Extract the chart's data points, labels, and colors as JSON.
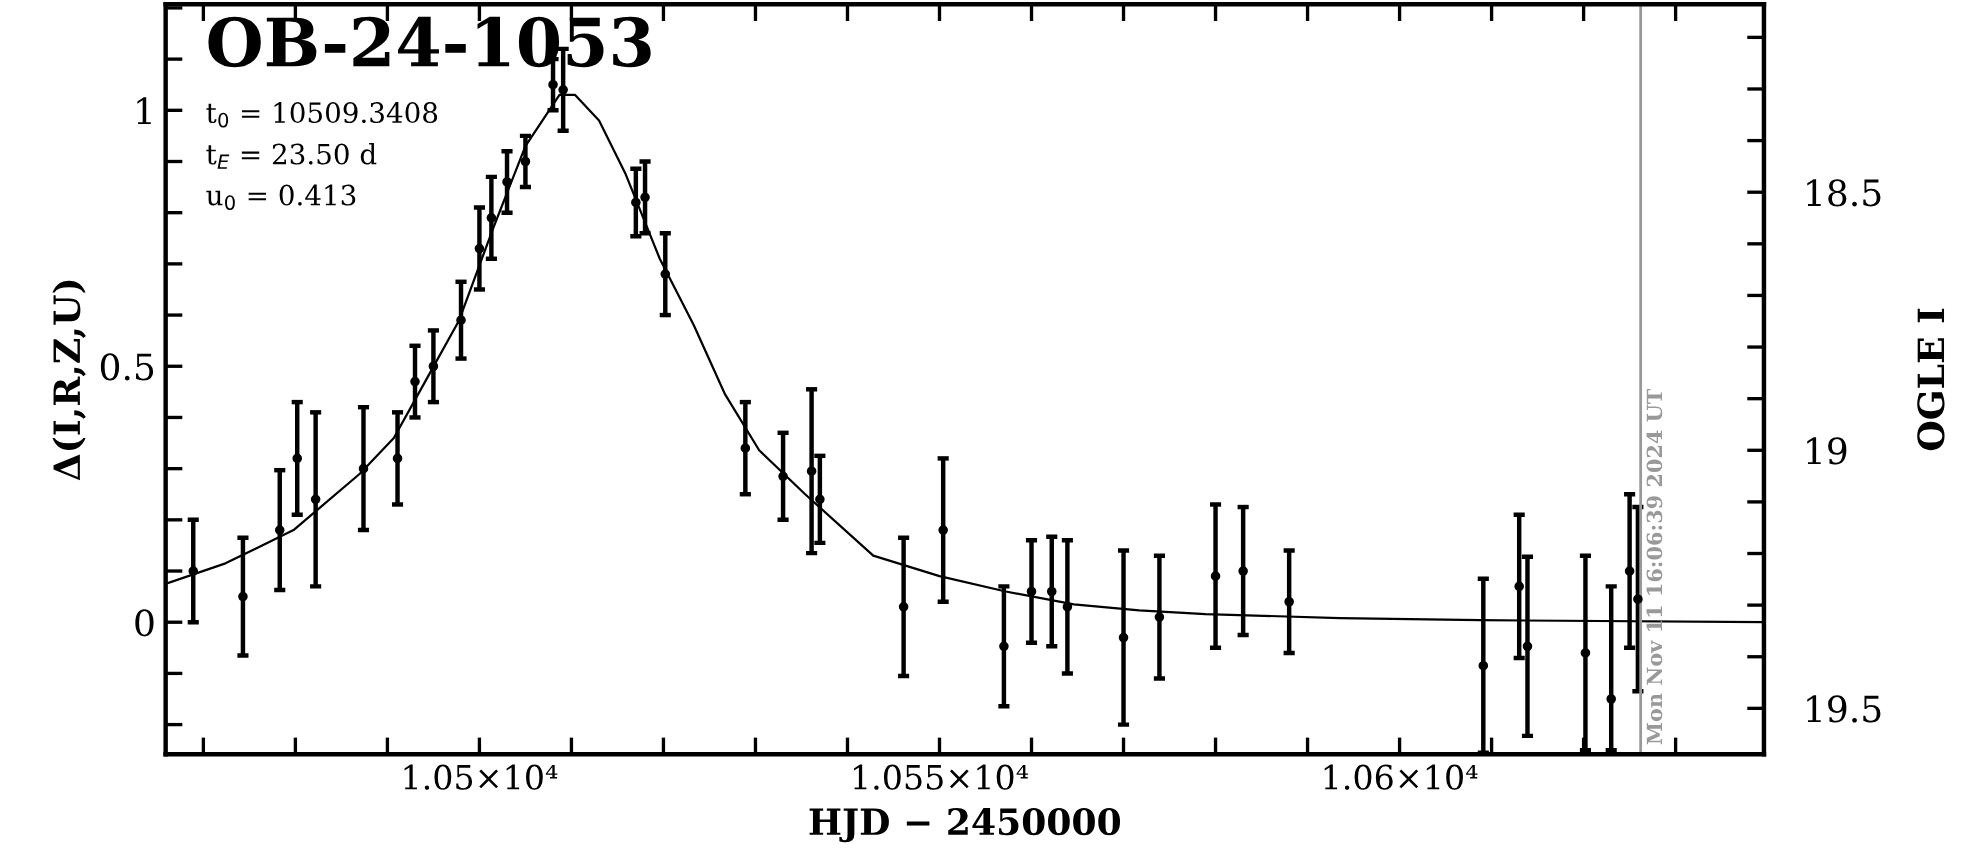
{
  "chart_data": {
    "type": "scatter",
    "title": "OB-24-1053",
    "xlabel": "HJD − 2450000",
    "ylabel": "Δ(I,R,Z,U)",
    "y2label": "OGLE I",
    "annotations": [
      "t$_{0}$ = 10509.3408",
      "t$_{E}$ = 23.50 d",
      "u$_{0}$ = 0.413",
      {
        "text": "Mon Nov 11 16:06:39 2024 UT",
        "x": 10626.2,
        "y": -0.24
      }
    ],
    "xlim": [
      10465.9,
      10639.6
    ],
    "ylim": [
      -0.258,
      1.207
    ],
    "y2lim": [
      19.589,
      18.136
    ],
    "xticks": [
      {
        "value": 10470,
        "label": null
      },
      {
        "value": 10480,
        "label": null
      },
      {
        "value": 10490,
        "label": null
      },
      {
        "value": 10500,
        "label": "1.05×10⁴"
      },
      {
        "value": 10510,
        "label": null
      },
      {
        "value": 10520,
        "label": null
      },
      {
        "value": 10530,
        "label": null
      },
      {
        "value": 10540,
        "label": null
      },
      {
        "value": 10550,
        "label": "1.055×10⁴"
      },
      {
        "value": 10560,
        "label": null
      },
      {
        "value": 10570,
        "label": null
      },
      {
        "value": 10580,
        "label": null
      },
      {
        "value": 10590,
        "label": null
      },
      {
        "value": 10600,
        "label": "1.06×10⁴"
      },
      {
        "value": 10610,
        "label": null
      },
      {
        "value": 10620,
        "label": null
      },
      {
        "value": 10630,
        "label": null
      }
    ],
    "yticks": [
      {
        "value": -0.2,
        "label": null
      },
      {
        "value": -0.1,
        "label": null
      },
      0,
      {
        "value": 0.1,
        "label": null
      },
      {
        "value": 0.2,
        "label": null
      },
      {
        "value": 0.3,
        "label": null
      },
      {
        "value": 0.4,
        "label": null
      },
      0.5,
      {
        "value": 0.6,
        "label": null
      },
      {
        "value": 0.7,
        "label": null
      },
      {
        "value": 0.8,
        "label": null
      },
      {
        "value": 0.9,
        "label": null
      },
      1,
      {
        "value": 1.1,
        "label": null
      },
      {
        "value": 1.2,
        "label": null
      }
    ],
    "y2ticks": [
      {
        "value": 18.2,
        "label": null
      },
      {
        "value": 18.3,
        "label": null
      },
      {
        "value": 18.4,
        "label": null
      },
      18.5,
      {
        "value": 18.6,
        "label": null
      },
      {
        "value": 18.7,
        "label": null
      },
      {
        "value": 18.8,
        "label": null
      },
      {
        "value": 18.9,
        "label": null
      },
      19,
      {
        "value": 19.1,
        "label": null
      },
      {
        "value": 19.2,
        "label": null
      },
      {
        "value": 19.3,
        "label": null
      },
      {
        "value": 19.4,
        "label": null
      },
      19.5
    ],
    "grid": false,
    "legend": false,
    "marker": "circle",
    "ref_lines": [
      {
        "axis": "x",
        "value": 10626.2,
        "color": "#999999"
      }
    ],
    "series": [
      {
        "color": "#000000",
        "x": [
          10468.9,
          10474.3,
          10478.3,
          10480.2,
          10482.2,
          10487.4,
          10491.1,
          10493.0,
          10495.0,
          10498.0,
          10500.0,
          10501.3,
          10503.0,
          10505.0,
          10508.0,
          10509.1,
          10517.0,
          10518.0,
          10520.2,
          10528.9,
          10533.0,
          10536.1,
          10537.0,
          10546.1,
          10550.4,
          10557.0,
          10560.0,
          10562.2,
          10563.9,
          10570.0,
          10573.9,
          10580.0,
          10583.0,
          10588.0,
          10609.1,
          10613.0,
          10613.9,
          10620.2,
          10623.0,
          10625.0,
          10625.9
        ],
        "values": [
          0.1,
          0.05,
          0.18,
          0.32,
          0.24,
          0.3,
          0.32,
          0.47,
          0.5,
          0.59,
          0.73,
          0.79,
          0.86,
          0.9,
          1.05,
          1.04,
          0.82,
          0.83,
          0.68,
          0.34,
          0.285,
          0.295,
          0.24,
          0.03,
          0.18,
          -0.047,
          0.06,
          0.06,
          0.03,
          -0.03,
          0.01,
          0.09,
          0.1,
          0.04,
          -0.085,
          0.07,
          -0.047,
          -0.06,
          -0.15,
          0.1,
          0.045
        ],
        "errors": [
          0.1,
          0.115,
          0.117,
          0.11,
          0.17,
          0.12,
          0.09,
          0.07,
          0.07,
          0.075,
          0.08,
          0.08,
          0.06,
          0.05,
          0.05,
          0.08,
          0.066,
          0.07,
          0.08,
          0.09,
          0.085,
          0.16,
          0.085,
          0.135,
          0.14,
          0.117,
          0.1,
          0.107,
          0.13,
          0.17,
          0.12,
          0.14,
          0.125,
          0.1,
          0.17,
          0.14,
          0.175,
          0.19,
          [
            -0.25,
            0.07
          ],
          0.15,
          0.18
        ]
      },
      {
        "type": "line",
        "color": "#000000",
        "marker": "none",
        "x": [
          10465.9,
          10472.4,
          10479.8,
          10487.0,
          10490.7,
          10494.1,
          10497.8,
          10501.5,
          10505.0,
          10508.7,
          10510.4,
          10513.0,
          10515.9,
          10519.6,
          10523.3,
          10526.7,
          10530.4,
          10535.4,
          10542.8,
          10550.0,
          10557.2,
          10564.6,
          10571.7,
          10578.9,
          10593.5,
          10608.7,
          10639.6
        ],
        "values": [
          0.075,
          0.115,
          0.18,
          0.29,
          0.36,
          0.47,
          0.59,
          0.77,
          0.93,
          1.03,
          1.03,
          0.98,
          0.875,
          0.71,
          0.58,
          0.445,
          0.336,
          0.25,
          0.13,
          0.09,
          0.06,
          0.035,
          0.023,
          0.016,
          0.008,
          0.004,
          0.0
        ]
      }
    ]
  }
}
